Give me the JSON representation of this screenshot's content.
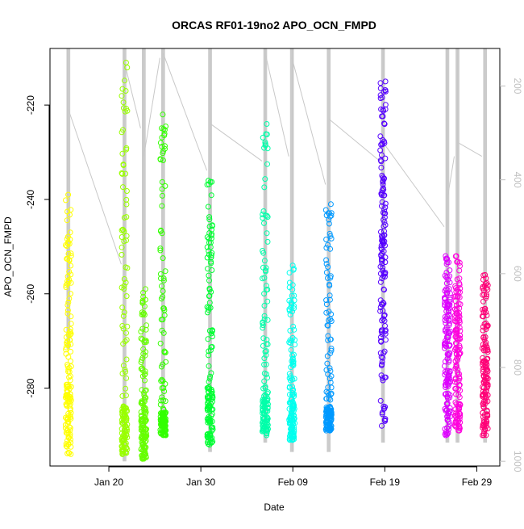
{
  "chart_data": {
    "type": "scatter",
    "title": "ORCAS RF01-19no2 APO_OCN_FMPD",
    "xlabel": "Date",
    "ylabel": "APO_OCN_FMPD",
    "x_ticks": [
      "Jan 20",
      "Jan 30",
      "Feb 09",
      "Feb 19",
      "Feb 29"
    ],
    "x_tick_day": [
      20,
      30,
      40,
      50,
      60
    ],
    "xlim_day": [
      13.6,
      62.5
    ],
    "y_ticks": [
      -220,
      -240,
      -260,
      -280
    ],
    "ylim": [
      -296.5,
      -208
    ],
    "y2_ticks": [
      200,
      400,
      600,
      800,
      1000
    ],
    "y2lim": [
      1010,
      120
    ],
    "y2_label_color": "#c0c0c0",
    "pressure_line_color": "#c8c8c8",
    "marker": "open-circle",
    "flights": [
      {
        "day": 15.6,
        "color": "#ffff00",
        "y_top": -239,
        "y_bottom": -294,
        "sparse_above": -276,
        "pressure_range": [
          120,
          760
        ],
        "link_to_next": [
          250,
          580
        ]
      },
      {
        "day": 21.7,
        "color": "#99ff00",
        "y_top": -211,
        "y_bottom": -294,
        "sparse_above": -284,
        "pressure_range": [
          120,
          1000
        ],
        "link_to_next": [
          150,
          290
        ]
      },
      {
        "day": 23.8,
        "color": "#66ff00",
        "y_top": -259,
        "y_bottom": -295,
        "sparse_above": -286,
        "pressure_range": [
          120,
          1000
        ],
        "link_to_next": [
          350,
          140
        ]
      },
      {
        "day": 25.9,
        "color": "#33ff00",
        "y_top": -222,
        "y_bottom": -290,
        "sparse_above": -285,
        "pressure_range": [
          120,
          940
        ],
        "link_to_next": [
          130,
          380
        ]
      },
      {
        "day": 31.0,
        "color": "#00ff33",
        "y_top": -236,
        "y_bottom": -292,
        "sparse_above": -280,
        "pressure_range": [
          120,
          980
        ],
        "link_to_next": [
          280,
          360
        ]
      },
      {
        "day": 37.0,
        "color": "#00ffaa",
        "y_top": -224,
        "y_bottom": -290,
        "sparse_above": -282,
        "pressure_range": [
          120,
          960
        ],
        "link_to_next": [
          130,
          350
        ]
      },
      {
        "day": 39.9,
        "color": "#00ffee",
        "y_top": -254,
        "y_bottom": -291,
        "sparse_above": -283,
        "pressure_range": [
          120,
          980
        ],
        "link_to_next": [
          140,
          410
        ]
      },
      {
        "day": 43.9,
        "color": "#0099ff",
        "y_top": -241,
        "y_bottom": -289,
        "sparse_above": -284,
        "pressure_range": [
          120,
          980
        ],
        "link_to_next": [
          270,
          360
        ]
      },
      {
        "day": 49.8,
        "color": "#5500ff",
        "y_top": -215,
        "y_bottom": -288,
        "sparse_above": -248,
        "pressure_range": [
          120,
          960
        ],
        "link_to_next": [
          320,
          500
        ]
      },
      {
        "day": 56.8,
        "color": "#dd00ff",
        "y_top": -252,
        "y_bottom": -290,
        "sparse_above": -270,
        "pressure_range": [
          120,
          960
        ],
        "link_to_next": [
          440,
          350
        ]
      },
      {
        "day": 57.9,
        "color": "#ff00dd",
        "y_top": -252,
        "y_bottom": -289,
        "sparse_above": -270,
        "pressure_range": [
          120,
          960
        ],
        "link_to_next": [
          320,
          350
        ]
      },
      {
        "day": 60.9,
        "color": "#ff0077",
        "y_top": -256,
        "y_bottom": -290,
        "sparse_above": -275,
        "pressure_range": [
          120,
          960
        ]
      }
    ]
  }
}
